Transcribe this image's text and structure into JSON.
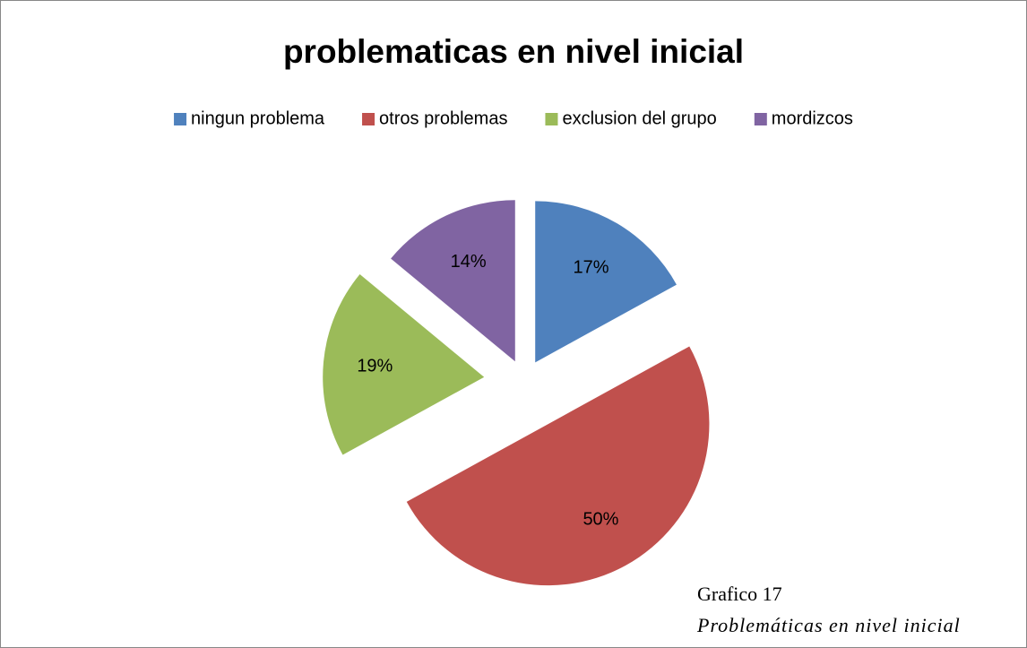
{
  "chart_data": {
    "type": "pie",
    "title": "problematicas en nivel inicial",
    "categories": [
      "ningun problema",
      "otros problemas",
      "exclusion del grupo",
      "mordizcos"
    ],
    "values": [
      17,
      50,
      19,
      14
    ],
    "value_labels": [
      "17%",
      "50%",
      "19%",
      "14%"
    ],
    "colors": [
      "#4f81bd",
      "#c0504d",
      "#9bbb59",
      "#8064a2"
    ],
    "legend": "top",
    "annotations": [
      "Grafico 17",
      "Problemáticas en nivel inicial"
    ]
  }
}
